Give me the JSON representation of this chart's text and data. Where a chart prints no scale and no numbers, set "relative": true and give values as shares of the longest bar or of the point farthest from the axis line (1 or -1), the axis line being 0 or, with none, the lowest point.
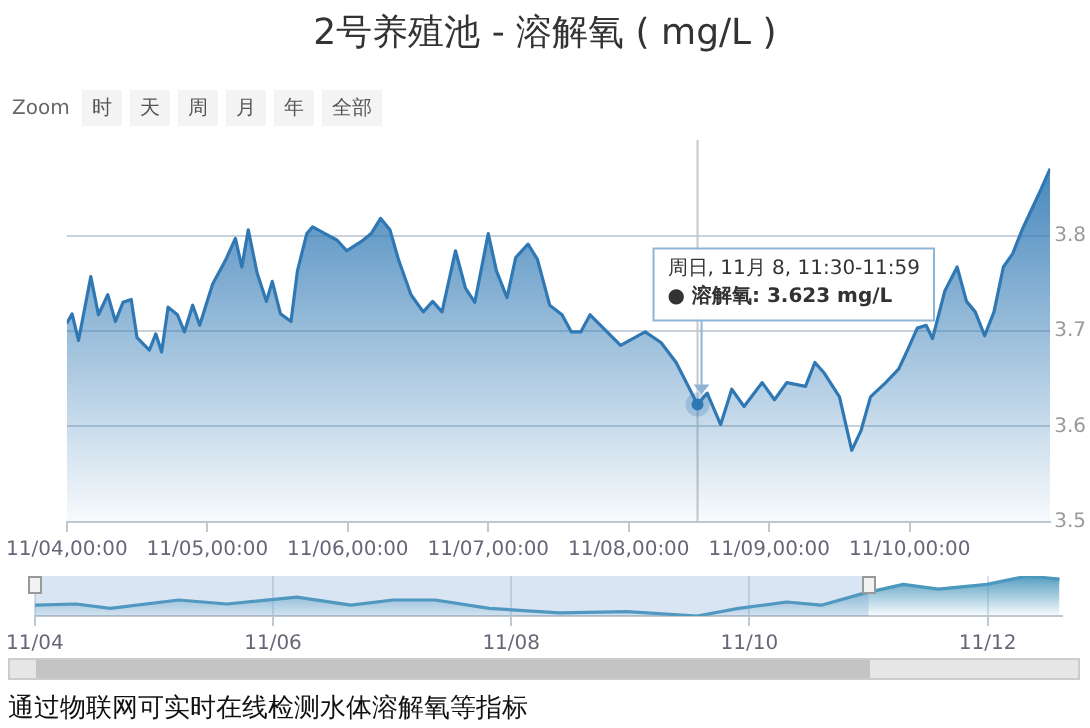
{
  "chart_data": [
    {
      "type": "area",
      "title": "2号养殖池 - 溶解氧 ( mg/L )",
      "series": [
        {
          "color": "#2f78b4",
          "x": [
            "--11-04T00:00",
            "--11-04T00:54",
            "--11-04T02:00",
            "--11-04T04:06",
            "--11-04T05:24",
            "--11-04T07:00",
            "--11-04T08:18",
            "--11-04T09:36",
            "--11-04T11:00",
            "--11-04T12:00",
            "--11-04T14:06",
            "--11-04T15:12",
            "--11-04T16:12",
            "--11-04T17:18",
            "--11-04T18:54",
            "--11-04T20:06",
            "--11-04T21:30",
            "--11-04T22:42",
            "--11-05T00:54",
            "--11-05T03:06",
            "--11-05T04:48",
            "--11-05T05:54",
            "--11-05T07:00",
            "--11-05T08:30",
            "--11-05T10:06",
            "--11-05T11:06",
            "--11-05T12:30",
            "--11-05T14:18",
            "--11-05T15:24",
            "--11-05T17:00",
            "--11-05T18:00",
            "--11-05T20:06",
            "--11-05T22:12",
            "--11-05T23:48",
            "--11-06T02:24",
            "--11-06T04:00",
            "--11-06T05:36",
            "--11-06T07:12",
            "--11-06T08:42",
            "--11-06T10:48",
            "--11-06T12:54",
            "--11-06T14:30",
            "--11-06T16:06",
            "--11-06T18:24",
            "--11-06T20:06",
            "--11-06T21:42",
            "--11-07T00:00",
            "--11-07T01:24",
            "--11-07T03:12",
            "--11-07T04:42",
            "--11-07T06:48",
            "--11-07T08:24",
            "--11-07T10:30",
            "--11-07T12:36",
            "--11-07T14:12",
            "--11-07T15:48",
            "--11-07T17:24",
            "--11-07T22:36",
            "--11-08T02:48",
            "--11-08T05:30",
            "--11-08T08:06",
            "--11-08T11:45",
            "--11-08T13:24",
            "--11-08T15:42",
            "--11-08T17:36",
            "--11-08T19:42",
            "--11-08T22:48",
            "--11-09T00:54",
            "--11-09T03:00",
            "--11-09T06:12",
            "--11-09T07:48",
            "--11-09T09:24",
            "--11-09T12:00",
            "--11-09T14:06",
            "--11-09T15:42",
            "--11-09T17:18",
            "--11-09T19:54",
            "--11-09T22:06",
            "--11-09T23:42",
            "--11-10T01:18",
            "--11-10T02:48",
            "--11-10T03:54",
            "--11-10T06:00",
            "--11-10T08:06",
            "--11-10T09:42",
            "--11-10T11:12",
            "--11-10T12:48",
            "--11-10T14:24",
            "--11-10T16:00",
            "--11-10T17:36",
            "--11-10T19:12",
            "--11-10T20:48",
            "--11-10T22:24",
            "--11-11T00:00"
          ],
          "values": [
            3.708,
            3.718,
            3.69,
            3.757,
            3.717,
            3.738,
            3.71,
            3.73,
            3.733,
            3.693,
            3.68,
            3.697,
            3.678,
            3.725,
            3.717,
            3.699,
            3.727,
            3.706,
            3.749,
            3.774,
            3.797,
            3.767,
            3.806,
            3.761,
            3.731,
            3.752,
            3.718,
            3.71,
            3.763,
            3.802,
            3.809,
            3.802,
            3.795,
            3.784,
            3.794,
            3.802,
            3.818,
            3.806,
            3.774,
            3.738,
            3.72,
            3.731,
            3.72,
            3.784,
            3.745,
            3.73,
            3.802,
            3.763,
            3.735,
            3.777,
            3.791,
            3.775,
            3.727,
            3.717,
            3.699,
            3.699,
            3.717,
            3.685,
            3.699,
            3.688,
            3.667,
            3.623,
            3.635,
            3.602,
            3.639,
            3.621,
            3.646,
            3.628,
            3.646,
            3.642,
            3.667,
            3.656,
            3.631,
            3.575,
            3.596,
            3.631,
            3.646,
            3.66,
            3.681,
            3.703,
            3.706,
            3.692,
            3.742,
            3.767,
            3.731,
            3.72,
            3.695,
            3.72,
            3.767,
            3.781,
            3.806,
            3.827,
            3.848,
            3.87
          ]
        }
      ],
      "xlim": [
        "--11-04T00:00",
        "--11-11T00:00"
      ],
      "xticks": [
        {
          "value": "--11-04T00:00",
          "label": "11/04,00:00"
        },
        {
          "value": "--11-05T00:00",
          "label": "11/05,00:00"
        },
        {
          "value": "--11-06T00:00",
          "label": "11/06,00:00"
        },
        {
          "value": "--11-07T00:00",
          "label": "11/07,00:00"
        },
        {
          "value": "--11-08T00:00",
          "label": "11/08,00:00"
        },
        {
          "value": "--11-09T00:00",
          "label": "11/09,00:00"
        },
        {
          "value": "--11-10T00:00",
          "label": "11/10,00:00"
        }
      ],
      "ylim": [
        3.5,
        3.9
      ],
      "yticks": [
        3.5,
        3.6,
        3.7,
        3.8
      ],
      "grid": "y",
      "legend": false,
      "ref_lines": [
        {
          "axis": "x",
          "value": "--11-08T11:45",
          "color": "#c8c8c8"
        }
      ],
      "annotations": [
        {
          "text": "周日, 11月 8, 11:30-11:59\n● 溶解氧: 3.623 mg/L",
          "x": "--11-08T11:45",
          "y": 3.623
        },
        "Zoom",
        "时",
        "天",
        "周",
        "月",
        "年",
        "全部"
      ]
    },
    {
      "type": "area",
      "relative": true,
      "tick_labels": "x",
      "series": [
        {
          "color": "#4a98bd",
          "x": [
            "--11-04T00:00",
            "--11-04T08:18",
            "--11-04T15:12",
            "--11-05T05:00",
            "--11-05T14:42",
            "--11-06T04:48",
            "--11-06T15:42",
            "--11-07T00:12",
            "--11-07T08:42",
            "--11-07T19:36",
            "--11-08T09:42",
            "--11-08T23:24",
            "--11-09T13:30",
            "--11-09T21:48",
            "--11-10T07:30",
            "--11-10T14:30",
            "--11-10T22:48",
            "--11-11T07:00",
            "--11-11T14:06",
            "--11-11T23:54",
            "--11-12T08:00",
            "--11-12T14:30"
          ],
          "values": [
            0.27,
            0.3,
            0.19,
            0.4,
            0.3,
            0.47,
            0.27,
            0.4,
            0.4,
            0.19,
            0.08,
            0.11,
            0,
            0.19,
            0.35,
            0.27,
            0.56,
            0.79,
            0.67,
            0.79,
            1,
            0.92
          ]
        }
      ],
      "xlim": [
        "--11-04T00:00",
        "--11-12T15:00"
      ],
      "xticks": [
        {
          "value": "--11-04T00:00",
          "label": "11/04"
        },
        {
          "value": "--11-06T00:00",
          "label": "11/06"
        },
        {
          "value": "--11-08T00:00",
          "label": "11/08"
        },
        {
          "value": "--11-10T00:00",
          "label": "11/10"
        },
        {
          "value": "--11-12T00:00",
          "label": "11/12"
        }
      ],
      "grid": "x",
      "legend": false,
      "bands": [
        {
          "axis": "x",
          "from": "--11-04T00:00",
          "to": "--11-11T00:00",
          "color": "#6699cc"
        }
      ],
      "annotations": [
        "通过物联网可实时在线检测水体溶解氧等指标"
      ]
    }
  ]
}
